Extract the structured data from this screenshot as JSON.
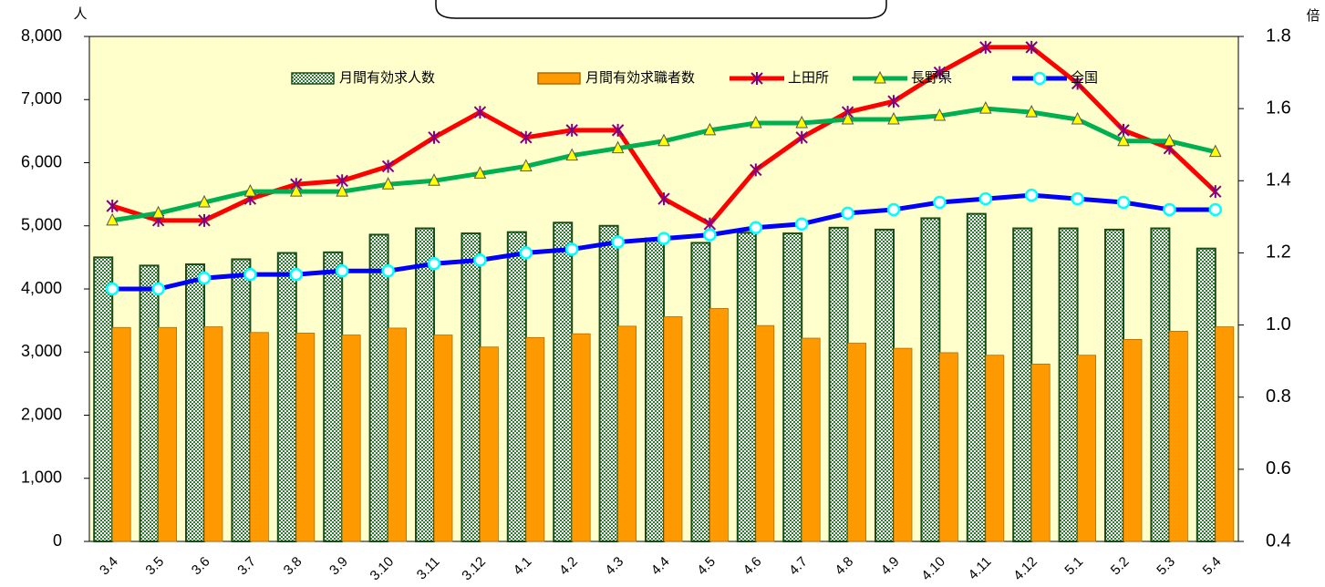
{
  "chart_data": {
    "type": "bar-line",
    "y_label": "人",
    "y2_label": "倍",
    "categories": [
      "3.4",
      "3.5",
      "3.6",
      "3.7",
      "3.8",
      "3.9",
      "3.10",
      "3.11",
      "3.12",
      "4.1",
      "4.2",
      "4.3",
      "4.4",
      "4.5",
      "4.6",
      "4.7",
      "4.8",
      "4.9",
      "4.10",
      "4.11",
      "4.12",
      "5.1",
      "5.2",
      "5.3",
      "5.4"
    ],
    "series": [
      {
        "name": "月間有効求人数",
        "type": "bar",
        "color": "#2e7d2e",
        "values": [
          4500,
          4370,
          4390,
          4470,
          4570,
          4580,
          4860,
          4960,
          4880,
          4900,
          5050,
          5000,
          4800,
          4730,
          4890,
          4880,
          4970,
          4940,
          5120,
          5190,
          4960,
          4960,
          4940,
          4960,
          4640
        ]
      },
      {
        "name": "月間有効求職者数",
        "type": "bar",
        "color": "#ff9900",
        "values": [
          3390,
          3390,
          3400,
          3310,
          3300,
          3270,
          3380,
          3270,
          3080,
          3230,
          3290,
          3410,
          3560,
          3690,
          3420,
          3220,
          3140,
          3060,
          2990,
          2950,
          2810,
          2950,
          3200,
          3330,
          3400
        ]
      },
      {
        "name": "上田所",
        "type": "line",
        "axis": "y2",
        "color": "#ff0000",
        "marker_color": "#800080",
        "marker": "x",
        "values": [
          1.33,
          1.29,
          1.29,
          1.35,
          1.39,
          1.4,
          1.44,
          1.52,
          1.59,
          1.52,
          1.54,
          1.54,
          1.35,
          1.28,
          1.43,
          1.52,
          1.59,
          1.62,
          1.7,
          1.77,
          1.77,
          1.67,
          1.54,
          1.49,
          1.37
        ]
      },
      {
        "name": "長野県",
        "type": "line",
        "axis": "y2",
        "color": "#00b050",
        "marker_color": "#ffff00",
        "marker": "triangle",
        "values": [
          1.29,
          1.31,
          1.34,
          1.37,
          1.37,
          1.37,
          1.39,
          1.4,
          1.42,
          1.44,
          1.47,
          1.49,
          1.51,
          1.54,
          1.56,
          1.56,
          1.57,
          1.57,
          1.58,
          1.6,
          1.59,
          1.57,
          1.51,
          1.51,
          1.48
        ]
      },
      {
        "name": "全国",
        "type": "line",
        "axis": "y2",
        "color": "#0000ff",
        "marker_color": "#00ffff",
        "marker": "circle",
        "values": [
          1.1,
          1.1,
          1.13,
          1.14,
          1.14,
          1.15,
          1.15,
          1.17,
          1.18,
          1.2,
          1.21,
          1.23,
          1.24,
          1.25,
          1.27,
          1.28,
          1.31,
          1.32,
          1.34,
          1.35,
          1.36,
          1.35,
          1.34,
          1.32,
          1.32
        ]
      }
    ],
    "ylim": [
      0,
      8000
    ],
    "yticks": [
      0,
      {
        "value": 1000,
        "label": "1,000"
      },
      {
        "value": 2000,
        "label": "2,000"
      },
      {
        "value": 3000,
        "label": "3,000"
      },
      {
        "value": 4000,
        "label": "4,000"
      },
      {
        "value": 5000,
        "label": "5,000"
      },
      {
        "value": 6000,
        "label": "6,000"
      },
      {
        "value": 7000,
        "label": "7,000"
      },
      {
        "value": 8000,
        "label": "8,000"
      }
    ],
    "y2lim": [
      0.4,
      1.8
    ],
    "y2ticks": [
      0.4,
      0.6,
      0.8,
      {
        "value": 1,
        "label": "1.0"
      },
      1.2,
      1.4,
      1.6,
      1.8
    ],
    "legend": "top",
    "plot_background": "#ffffcc"
  }
}
